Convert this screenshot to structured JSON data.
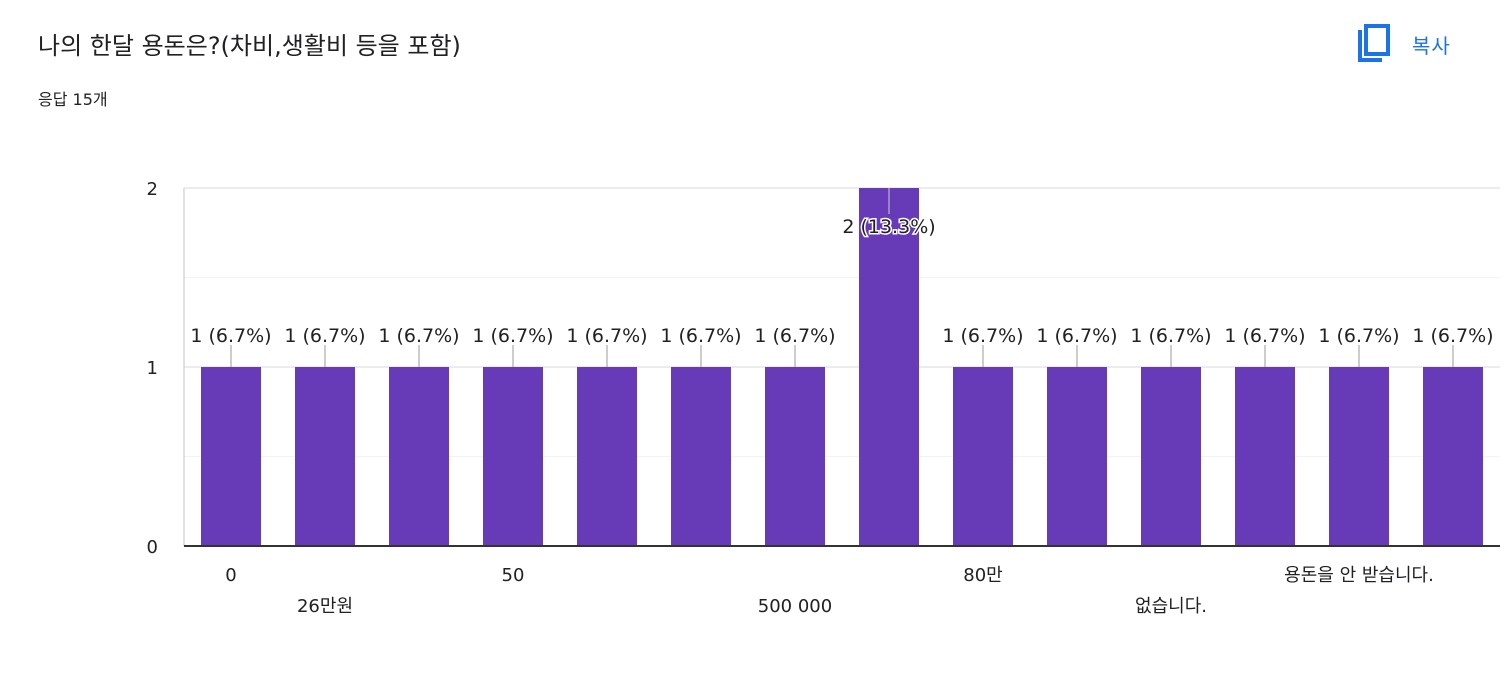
{
  "header": {
    "title": "나의 한달 용돈은?(차비,생활비 등을 포함)",
    "response_count": "응답 15개",
    "copy_label": "복사",
    "copy_icon": "copy-icon"
  },
  "colors": {
    "bar": "#673ab7",
    "gridline": "#ebebeb",
    "axis": "#333333",
    "text": "#202124",
    "accent": "#1a73e8"
  },
  "chart_data": {
    "type": "bar",
    "title": "",
    "xlabel": "",
    "ylabel": "",
    "ylim": [
      0,
      2
    ],
    "yticks": [
      0,
      1,
      2
    ],
    "grid": true,
    "legend": "none",
    "categories": [
      "0",
      "26만원",
      "",
      "50",
      "",
      "",
      "500 000",
      "",
      "80만",
      "",
      "없습니다.",
      "",
      "용돈을 안 받습니다.",
      ""
    ],
    "values": [
      1,
      1,
      1,
      1,
      1,
      1,
      1,
      2,
      1,
      1,
      1,
      1,
      1,
      1
    ],
    "data_labels": [
      "1 (6.7%)",
      "1 (6.7%)",
      "1 (6.7%)",
      "1 (6.7%)",
      "1 (6.7%)",
      "1 (6.7%)",
      "1 (6.7%)",
      "2 (13.3%)",
      "1 (6.7%)",
      "1 (6.7%)",
      "1 (6.7%)",
      "1 (6.7%)",
      "1 (6.7%)",
      "1 (6.7%)"
    ]
  }
}
